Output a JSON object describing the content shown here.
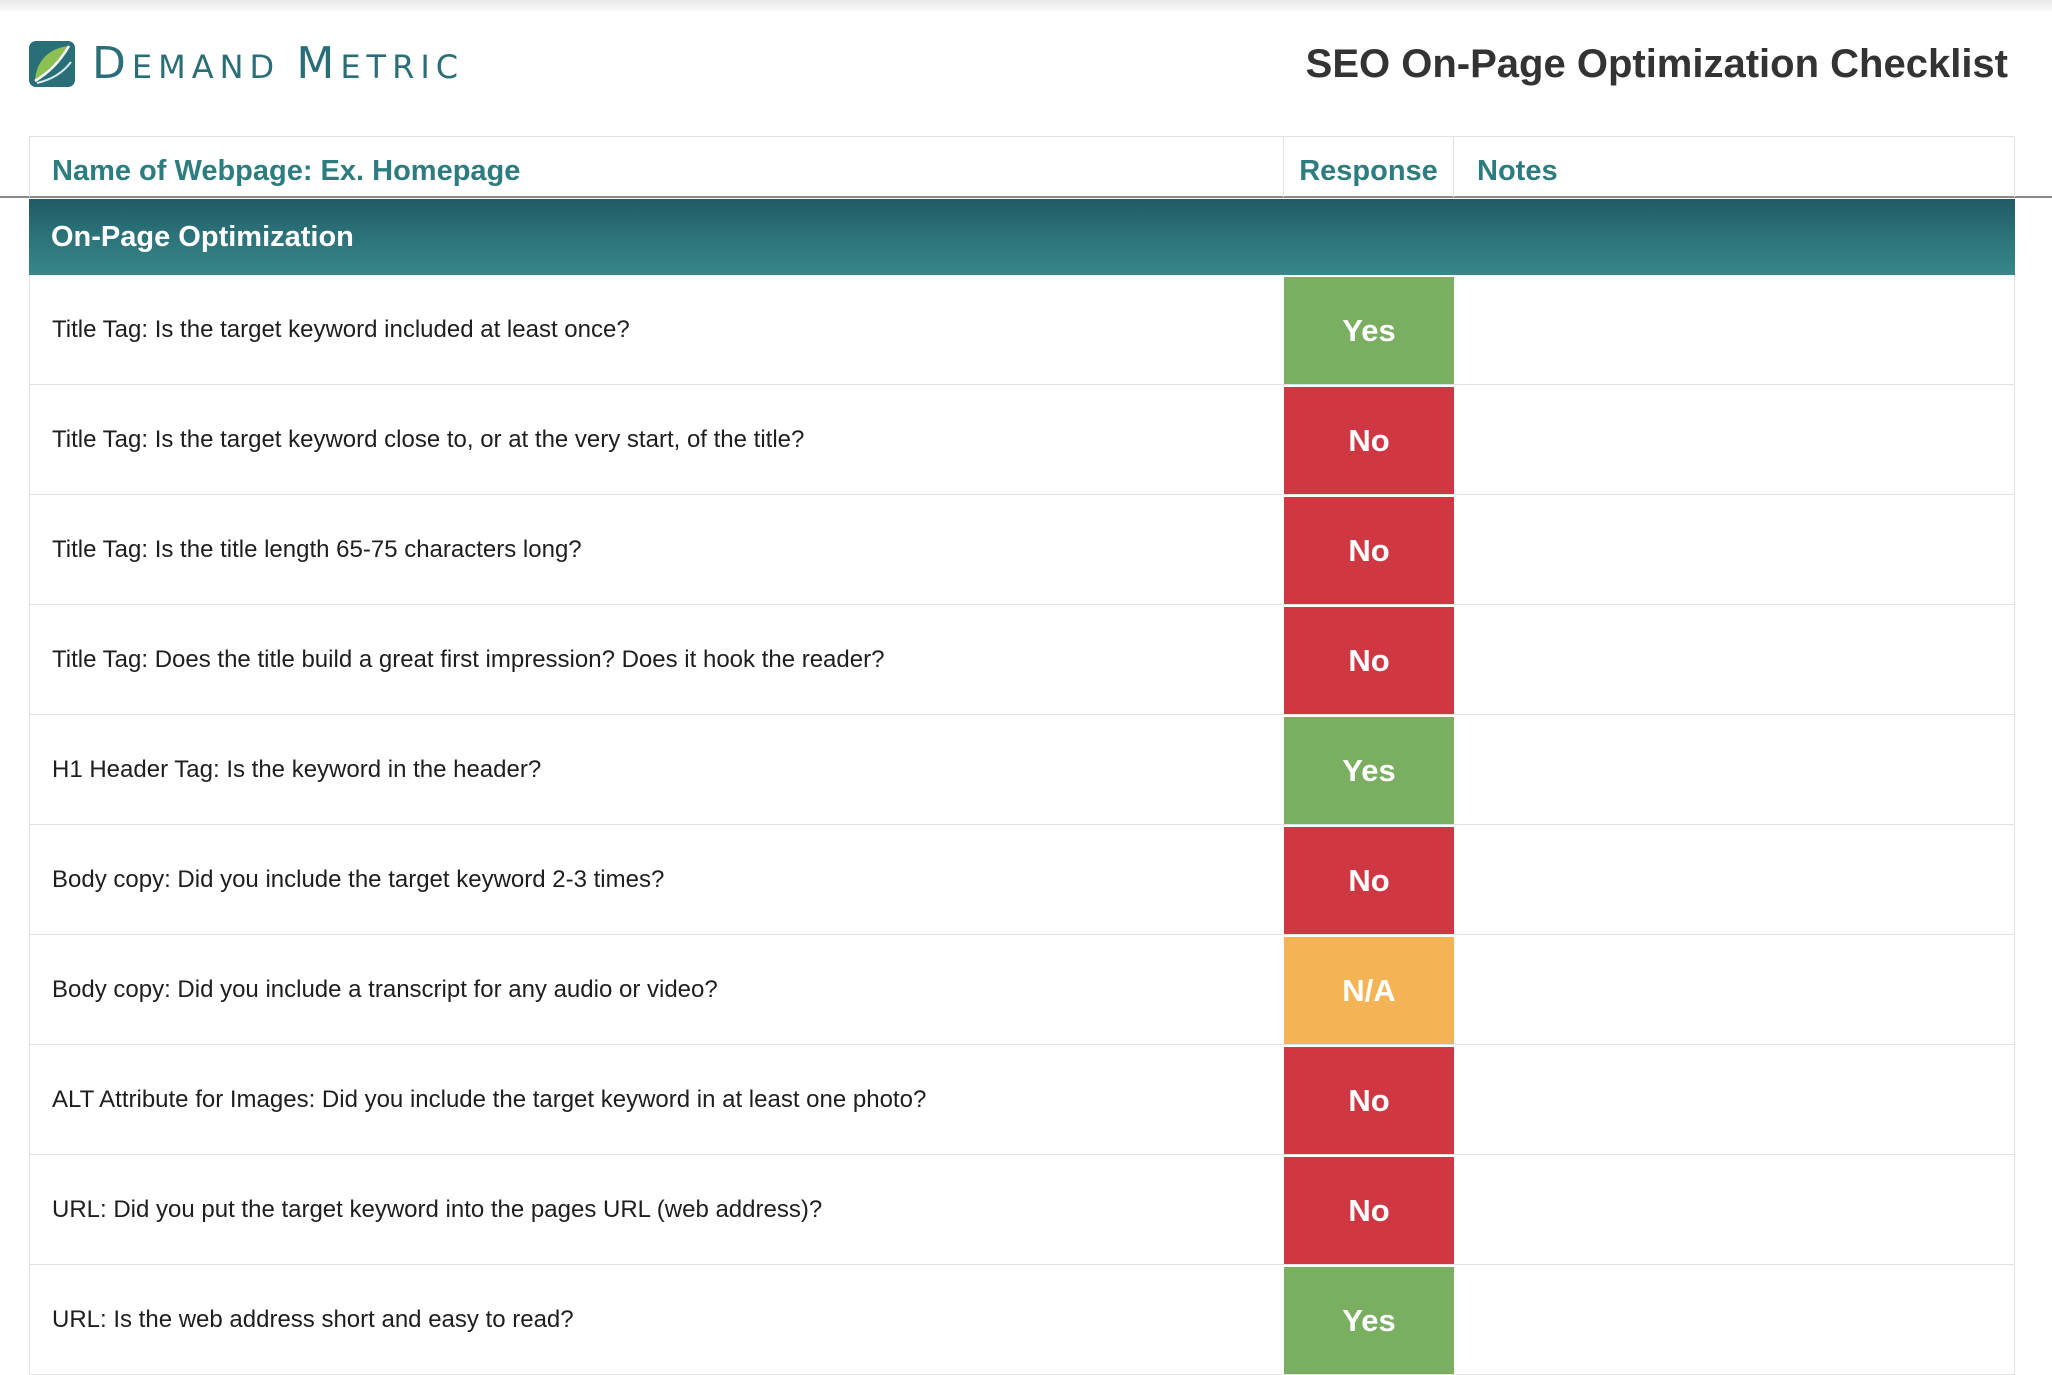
{
  "brand": {
    "logo_icon": "demand-metric-leaf-icon",
    "name": "Demand Metric",
    "color": "#2a6e78"
  },
  "doc_title": "SEO On-Page Optimization Checklist",
  "table": {
    "header": {
      "page_name": "Name of Webpage: Ex. Homepage",
      "response": "Response",
      "notes": "Notes"
    },
    "section": "On-Page Optimization",
    "rows": [
      {
        "question": "Title Tag: Is the target keyword included at least once?",
        "response": "Yes",
        "notes": ""
      },
      {
        "question": "Title Tag: Is the target keyword close to, or at the very start, of the title?",
        "response": "No",
        "notes": ""
      },
      {
        "question": "Title Tag: Is the title length 65-75 characters long?",
        "response": "No",
        "notes": ""
      },
      {
        "question": "Title Tag: Does the title build a great first impression? Does it hook the reader?",
        "response": "No",
        "notes": ""
      },
      {
        "question": "H1 Header Tag: Is the keyword in the header?",
        "response": "Yes",
        "notes": ""
      },
      {
        "question": "Body copy: Did you include the target keyword 2-3 times?",
        "response": "No",
        "notes": ""
      },
      {
        "question": "Body copy: Did you include a transcript for any audio or video?",
        "response": "N/A",
        "notes": ""
      },
      {
        "question": "ALT Attribute for Images: Did you include the target keyword in at least one photo?",
        "response": "No",
        "notes": ""
      },
      {
        "question": "URL: Did you put the target keyword into the pages URL (web address)?",
        "response": "No",
        "notes": ""
      },
      {
        "question": "URL: Is the web address short and easy to read?",
        "response": "Yes",
        "notes": ""
      }
    ]
  },
  "colors": {
    "accent": "#2d7c7f",
    "yes": "#7aae61",
    "no": "#cf3843",
    "na": "#f4b455",
    "section_bar": "#2b7178"
  }
}
